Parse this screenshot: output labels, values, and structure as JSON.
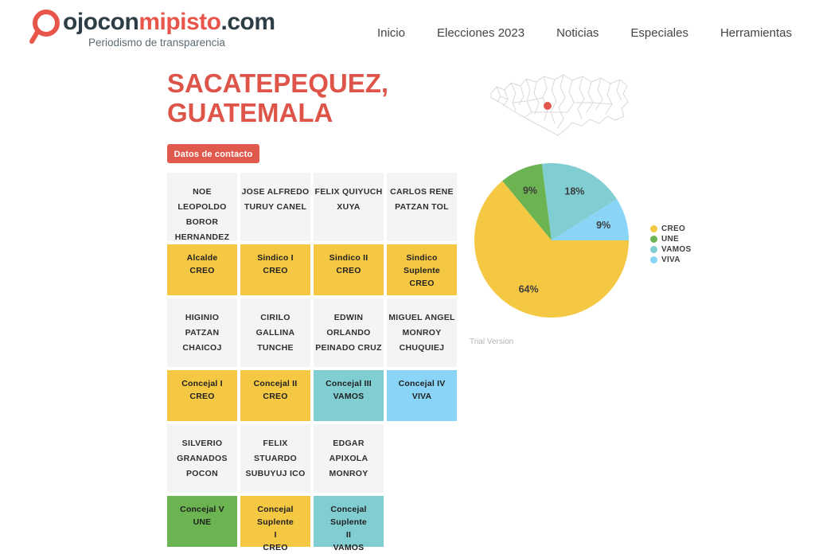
{
  "header": {
    "logo": {
      "icon": "magnifier-icon",
      "part1": "ojocon",
      "part2": "mipisto",
      "part3": ".com",
      "tagline": "Periodismo de transparencia"
    },
    "nav": [
      "Inicio",
      "Elecciones 2023",
      "Noticias",
      "Especiales",
      "Herramientas"
    ]
  },
  "page": {
    "title_line1": "SACATEPEQUEZ,",
    "title_line2": "GUATEMALA",
    "contact_button": "Datos de contacto"
  },
  "parties": {
    "CREO": "#F5C844",
    "UNE": "#6CB451",
    "VAMOS": "#80CDD2",
    "VIVA": "#8AD4F8"
  },
  "officials": [
    {
      "name_lines": [
        "NOE LEOPOLDO",
        "BOROR",
        "HERNANDEZ"
      ],
      "position_lines": [
        "Alcalde"
      ],
      "party": "CREO"
    },
    {
      "name_lines": [
        "JOSE ALFREDO",
        "TURUY CANEL"
      ],
      "position_lines": [
        "Sindico I"
      ],
      "party": "CREO"
    },
    {
      "name_lines": [
        "FELIX QUIYUCH",
        "XUYA"
      ],
      "position_lines": [
        "Sindico II"
      ],
      "party": "CREO"
    },
    {
      "name_lines": [
        "CARLOS RENE",
        "PATZAN TOL"
      ],
      "position_lines": [
        "Sindico Suplente"
      ],
      "party": "CREO"
    },
    {
      "name_lines": [
        "HIGINIO PATZAN",
        "CHAICOJ"
      ],
      "position_lines": [
        "Concejal I"
      ],
      "party": "CREO"
    },
    {
      "name_lines": [
        "CIRILO GALLINA",
        "TUNCHE"
      ],
      "position_lines": [
        "Concejal II"
      ],
      "party": "CREO"
    },
    {
      "name_lines": [
        "EDWIN ORLANDO",
        "PEINADO CRUZ"
      ],
      "position_lines": [
        "Concejal III"
      ],
      "party": "VAMOS"
    },
    {
      "name_lines": [
        "MIGUEL ANGEL",
        "MONROY",
        "CHUQUIEJ"
      ],
      "position_lines": [
        "Concejal IV"
      ],
      "party": "VIVA"
    },
    {
      "name_lines": [
        "SILVERIO",
        "GRANADOS POCON"
      ],
      "position_lines": [
        "Concejal V"
      ],
      "party": "UNE"
    },
    {
      "name_lines": [
        "FELIX STUARDO",
        "SUBUYUJ ICO"
      ],
      "position_lines": [
        "Concejal Suplente",
        "I"
      ],
      "party": "CREO"
    },
    {
      "name_lines": [
        "EDGAR APIXOLA",
        "MONROY"
      ],
      "position_lines": [
        "Concejal Suplente",
        "II"
      ],
      "party": "VAMOS"
    }
  ],
  "chart_data": {
    "type": "pie",
    "title": "",
    "slices": [
      {
        "label": "CREO",
        "pct": 64
      },
      {
        "label": "UNE",
        "pct": 9
      },
      {
        "label": "VAMOS",
        "pct": 18
      },
      {
        "label": "VIVA",
        "pct": 9
      }
    ],
    "start_angle_deg": 0,
    "direction": "clockwise",
    "legend_position": "right",
    "legend_entries": [
      "CREO",
      "UNE",
      "VAMOS",
      "VIVA"
    ]
  },
  "map": {
    "marker_color": "#E2574C",
    "stroke_color": "#D9D9D9"
  },
  "watermark": "Trial Version",
  "colors": {
    "accent_red": "#E0594D",
    "title_red": "#DE5449",
    "name_cell_bg": "#F4F4F4",
    "text_dark": "#2D3E46"
  }
}
